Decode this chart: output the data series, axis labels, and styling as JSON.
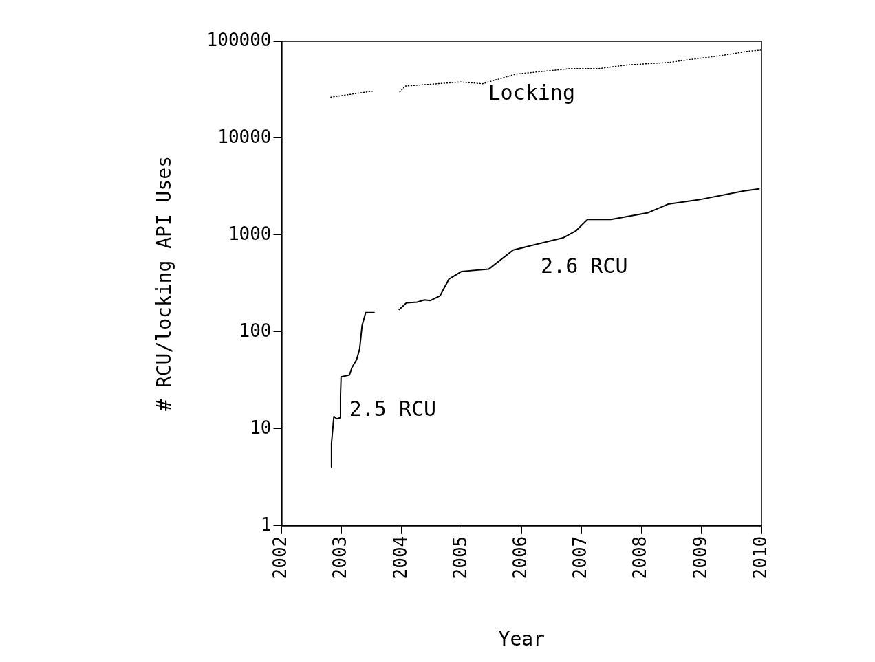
{
  "chart_data": {
    "type": "line",
    "xlabel": "Year",
    "ylabel": "# RCU/locking API Uses",
    "log": "y",
    "xlim": [
      2002,
      2010
    ],
    "xticks": [
      2002,
      2003,
      2004,
      2005,
      2006,
      2007,
      2008,
      2009,
      2010
    ],
    "ylim": [
      1,
      100000
    ],
    "yticks": [
      1,
      10,
      100,
      1000,
      10000,
      100000
    ],
    "grid": false,
    "legend": false,
    "marker": "none",
    "series": [
      {
        "name": "Locking",
        "color": "#000000",
        "line_style": "dotted",
        "x": [
          2002.82,
          2003.54,
          2003.75,
          2003.97,
          2004.06,
          2004.98,
          2005.35,
          2005.9,
          2006.83,
          2007.29,
          2007.75,
          2008.44,
          2008.91,
          2009.37,
          2009.78,
          2010
        ],
        "values": [
          26500,
          30700,
          null,
          30000,
          34500,
          38000,
          36500,
          45800,
          52300,
          52300,
          56900,
          60400,
          66000,
          71800,
          79000,
          81000
        ]
      },
      {
        "name": "2.5 RCU",
        "color": "#000000",
        "line_style": "solid",
        "x": [
          2002.83,
          2002.83,
          2002.87,
          2002.92,
          2002.97,
          2002.98,
          2002.99,
          2003.13,
          2003.17,
          2003.25,
          2003.3,
          2003.34,
          2003.4,
          2003.54
        ],
        "values": [
          4,
          7.1,
          13.4,
          12.7,
          13,
          22,
          34.4,
          36,
          42.7,
          52,
          67,
          116,
          158,
          158
        ]
      },
      {
        "name": "2.6 RCU",
        "color": "#000000",
        "line_style": "solid",
        "x": [
          2003.96,
          2004.08,
          2004.26,
          2004.38,
          2004.48,
          2004.64,
          2004.79,
          2005.0,
          2005.45,
          2005.86,
          2006.69,
          2006.91,
          2007.1,
          2007.49,
          2008.11,
          2008.44,
          2009.0,
          2009.71,
          2009.96
        ],
        "values": [
          170,
          200,
          203,
          214,
          211,
          236,
          352,
          421,
          444,
          700,
          935,
          1110,
          1450,
          1450,
          1700,
          2080,
          2340,
          2850,
          3000
        ]
      }
    ]
  }
}
